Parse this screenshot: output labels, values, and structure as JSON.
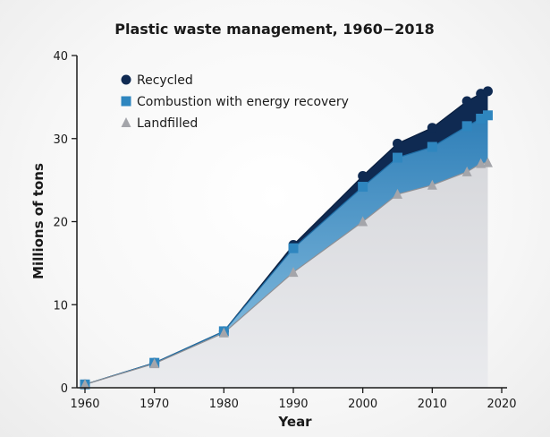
{
  "chart_data": {
    "type": "area",
    "title": "Plastic waste management, 1960−2018",
    "xlabel": "Year",
    "ylabel": "Millions of tons",
    "xlim": [
      1959,
      2021
    ],
    "ylim": [
      0,
      40
    ],
    "x_ticks": [
      1960,
      1970,
      1980,
      1990,
      2000,
      2010,
      2020
    ],
    "y_ticks": [
      0,
      10,
      20,
      30,
      40
    ],
    "grid": false,
    "legend_position": "top-left",
    "x": [
      1960,
      1970,
      1980,
      1990,
      2000,
      2005,
      2010,
      2015,
      2017,
      2018
    ],
    "series": [
      {
        "name": "Recycled",
        "marker": "circle",
        "color": "#0f2a52",
        "values": [
          0.4,
          3.0,
          6.8,
          17.2,
          25.5,
          29.4,
          31.3,
          34.5,
          35.4,
          35.7
        ]
      },
      {
        "name": "Combustion with energy recovery",
        "marker": "square",
        "color": "#3b8fc2",
        "values": [
          0.4,
          3.0,
          6.8,
          16.8,
          24.2,
          27.7,
          29.0,
          31.5,
          32.4,
          32.8
        ]
      },
      {
        "name": "Landfilled",
        "marker": "triangle",
        "color": "#a8a8ad",
        "values": [
          0.4,
          2.9,
          6.6,
          13.9,
          20.0,
          23.3,
          24.4,
          26.0,
          27.0,
          27.1
        ]
      }
    ]
  }
}
